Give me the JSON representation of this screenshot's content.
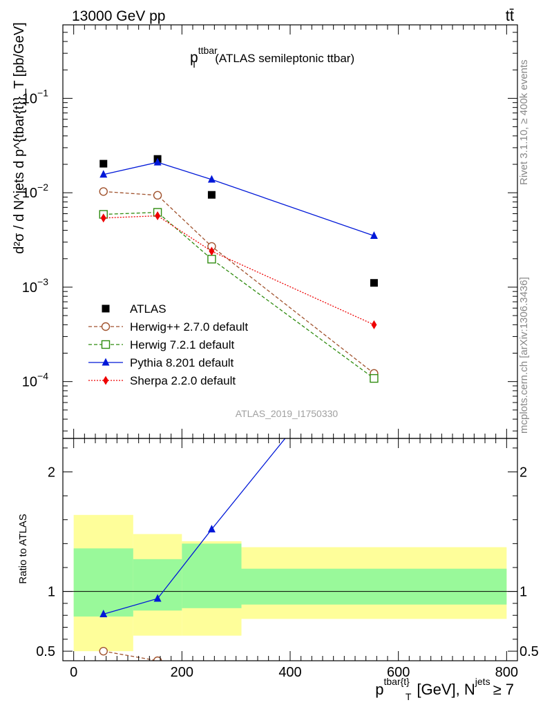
{
  "header": {
    "left_label": "13000 GeV pp",
    "right_label": "tt̄"
  },
  "side_labels": {
    "rivet": "Rivet 3.1.10, ≥ 400k events",
    "mcplots": "mcplots.cern.ch [arXiv:1306.3436]"
  },
  "chart_data": [
    {
      "type": "line",
      "title": "p_T^ttbar (ATLAS semileptonic ttbar)",
      "title_main": "p",
      "title_sub": "T",
      "title_sup": "ttbar",
      "title_rest": "(ATLAS semileptonic ttbar)",
      "analysis_label": "ATLAS_2019_I1750330",
      "ylabel": "d²σ / d N^jets d p^{tbar{t}}_T [pb/GeV]",
      "yscale": "log",
      "ylim": [
        2.5e-05,
        0.6
      ],
      "xlim": [
        -20,
        820
      ],
      "yticks": [
        {
          "value": 0.1,
          "label": "10^-1",
          "base": "10",
          "exp": "−1"
        },
        {
          "value": 0.01,
          "label": "10^-2",
          "base": "10",
          "exp": "−2"
        },
        {
          "value": 0.001,
          "label": "10^-3",
          "base": "10",
          "exp": "−3"
        },
        {
          "value": 0.0001,
          "label": "10^-4",
          "base": "10",
          "exp": "−4"
        }
      ],
      "x": [
        55,
        155,
        255,
        555
      ],
      "series": [
        {
          "name": "ATLAS",
          "color": "#000000",
          "marker": "square-filled",
          "line": "none",
          "values": [
            0.0203,
            0.0228,
            0.0095,
            0.00111
          ]
        },
        {
          "name": "Herwig++ 2.7.0 default",
          "color": "#a0522d",
          "marker": "circle-open",
          "line": "dashed",
          "values": [
            0.0103,
            0.0094,
            0.0027,
            0.000122
          ]
        },
        {
          "name": "Herwig 7.2.1 default",
          "color": "#2e8b0e",
          "marker": "square-open",
          "line": "dashed",
          "values": [
            0.0059,
            0.0062,
            0.00198,
            0.000108
          ]
        },
        {
          "name": "Pythia 8.201 default",
          "color": "#0018d8",
          "marker": "triangle-filled",
          "line": "solid",
          "values": [
            0.0156,
            0.021,
            0.0138,
            0.0035
          ]
        },
        {
          "name": "Sherpa 2.2.0 default",
          "color": "#ee0000",
          "marker": "diamond-filled",
          "line": "dotted",
          "values": [
            0.0054,
            0.0057,
            0.0024,
            0.0004
          ]
        }
      ],
      "legend_position": "bottom-left"
    },
    {
      "type": "line",
      "ylabel": "Ratio to ATLAS",
      "xlabel": "p^{tbar{t}}_T [GeV], N^jets ≥ 7",
      "xlabel_main": "p",
      "xlabel_sup": "tbar{t}",
      "xlabel_sub": "T",
      "xlabel_mid": "[GeV], N",
      "xlabel_sup2": "jets",
      "xlabel_end": "≥ 7",
      "xlim": [
        -20,
        820
      ],
      "ylim": [
        0.42,
        2.28
      ],
      "xticks": [
        0,
        200,
        400,
        600,
        800
      ],
      "yticks": [
        0.5,
        1,
        2
      ],
      "bins": [
        {
          "low": 0,
          "high": 110,
          "band_inner": [
            0.79,
            1.36
          ],
          "band_outer": [
            0.5,
            1.64
          ]
        },
        {
          "low": 110,
          "high": 200,
          "band_inner": [
            0.84,
            1.27
          ],
          "band_outer": [
            0.63,
            1.48
          ]
        },
        {
          "low": 200,
          "high": 310,
          "band_inner": [
            0.86,
            1.4
          ],
          "band_outer": [
            0.63,
            1.42
          ]
        },
        {
          "low": 310,
          "high": 800,
          "band_inner": [
            0.89,
            1.19
          ],
          "band_outer": [
            0.77,
            1.37
          ]
        }
      ],
      "reference": 1,
      "colors": {
        "inner_band": "#99f99a",
        "outer_band": "#fefe9a"
      },
      "x": [
        55,
        155,
        255,
        555
      ],
      "series": [
        {
          "name": "Herwig++ 2.7.0 default",
          "color": "#a0522d",
          "marker": "circle-open",
          "line": "dashed",
          "values": [
            0.5,
            0.42,
            null,
            null
          ]
        },
        {
          "name": "Pythia 8.201 default",
          "color": "#0018d8",
          "marker": "triangle-filled",
          "line": "solid",
          "values": [
            0.81,
            0.94,
            1.52,
            3.2
          ]
        }
      ]
    }
  ]
}
